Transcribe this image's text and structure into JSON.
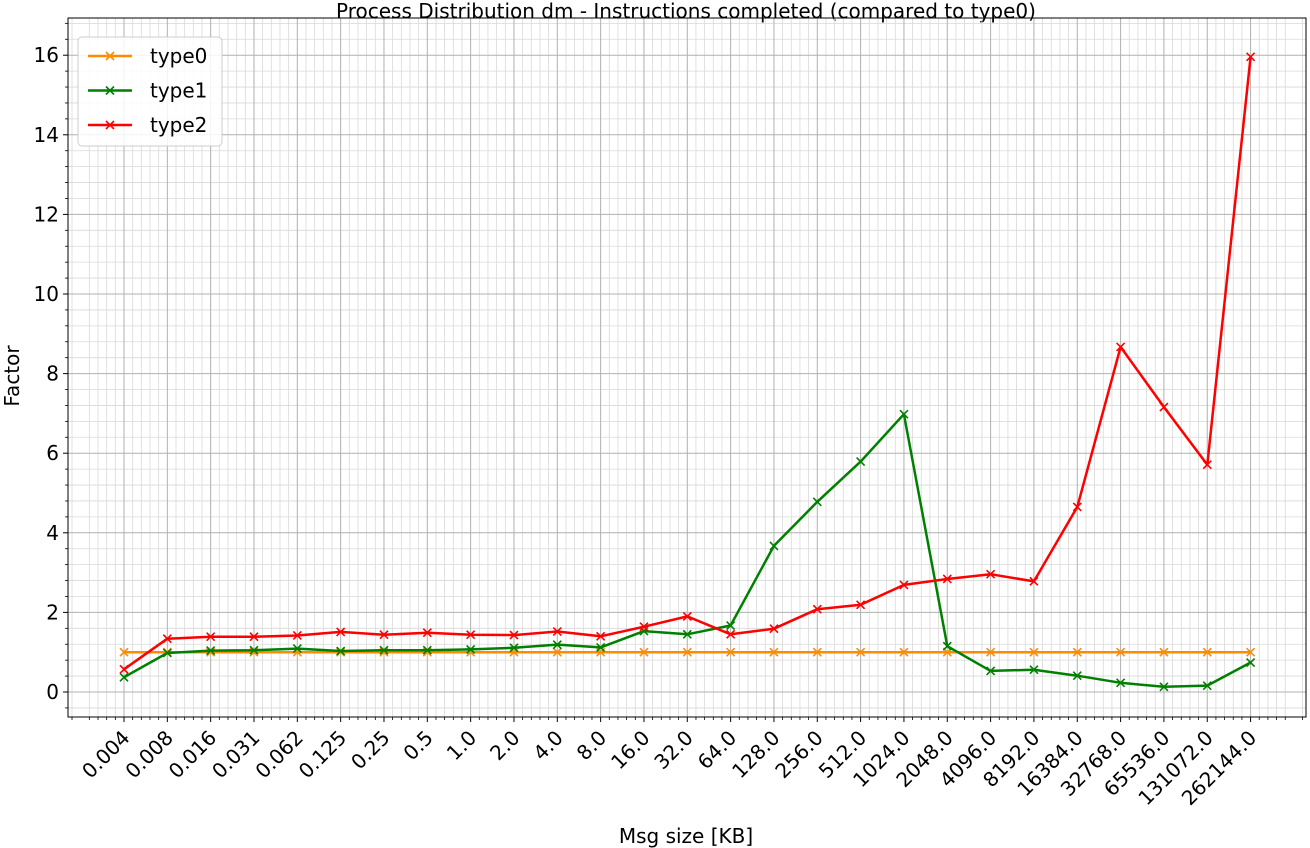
{
  "chart_data": {
    "type": "line",
    "title": "Process Distribution dm - Instructions completed (compared to type0)",
    "xlabel": "Msg size [KB]",
    "ylabel": "Factor",
    "categories": [
      "0.004",
      "0.008",
      "0.016",
      "0.031",
      "0.062",
      "0.125",
      "0.25",
      "0.5",
      "1.0",
      "2.0",
      "4.0",
      "8.0",
      "16.0",
      "32.0",
      "64.0",
      "128.0",
      "256.0",
      "512.0",
      "1024.0",
      "2048.0",
      "4096.0",
      "8192.0",
      "16384.0",
      "32768.0",
      "65536.0",
      "131072.0",
      "262144.0"
    ],
    "y_ticks": [
      "0",
      "2",
      "4",
      "6",
      "8",
      "10",
      "12",
      "14",
      "16"
    ],
    "ylim": [
      -0.6,
      16.7
    ],
    "grid": "major and minor",
    "legend_position": "top-left",
    "series": [
      {
        "name": "type0",
        "color": "#ff8c00",
        "marker": "x",
        "values": [
          1,
          1,
          1,
          1,
          1,
          1,
          1,
          1,
          1,
          1,
          1,
          1,
          1,
          1,
          1,
          1,
          1,
          1,
          1,
          1,
          1,
          1,
          1,
          1,
          1,
          1,
          1
        ]
      },
      {
        "name": "type1",
        "color": "#008000",
        "marker": "x",
        "values": [
          0.37,
          0.98,
          1.04,
          1.05,
          1.09,
          1.03,
          1.05,
          1.05,
          1.07,
          1.11,
          1.19,
          1.12,
          1.53,
          1.45,
          1.67,
          3.67,
          4.78,
          5.79,
          6.98,
          1.15,
          0.53,
          0.56,
          0.41,
          0.23,
          0.13,
          0.16,
          0.74
        ]
      },
      {
        "name": "type2",
        "color": "#ff0000",
        "marker": "x",
        "values": [
          0.57,
          1.34,
          1.39,
          1.39,
          1.42,
          1.51,
          1.44,
          1.49,
          1.44,
          1.43,
          1.52,
          1.4,
          1.64,
          1.9,
          1.45,
          1.59,
          2.08,
          2.19,
          2.69,
          2.84,
          2.96,
          2.78,
          4.65,
          8.67,
          7.16,
          5.71,
          15.96
        ]
      }
    ]
  }
}
